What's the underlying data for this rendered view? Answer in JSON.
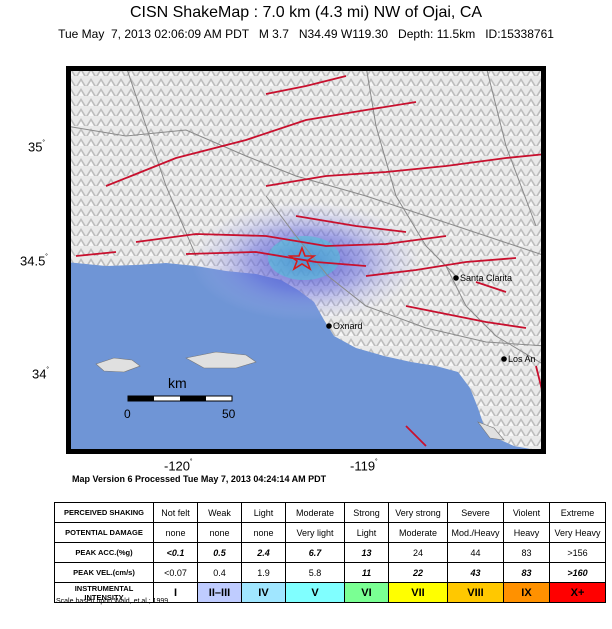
{
  "header": {
    "title": "CISN ShakeMap : 7.0 km (4.3 mi) NW of Ojai, CA",
    "subtitle": "Tue May  7, 2013 02:06:09 AM PDT   M 3.7   N34.49 W119.30   Depth: 11.5km   ID:15338761"
  },
  "map": {
    "lat_labels": [
      "35",
      "34.5",
      "34"
    ],
    "lon_labels": [
      "-120",
      "-119"
    ],
    "degree_symbol": "˚",
    "cities": [
      "Santa Clarita",
      "Oxnard",
      "Los An"
    ],
    "scale_bar": {
      "unit": "km",
      "start": "0",
      "end": "50"
    },
    "colors": {
      "ocean": "#6f95d6",
      "land": "#e8e8e8",
      "faults": "#c8102e",
      "roads": "#8a8a8a",
      "epicenter": "#d81b1b",
      "shaking": "#5a5fd8"
    }
  },
  "version_text": "Map Version 6 Processed Tue May  7, 2013 04:24:14 AM PDT",
  "legend": {
    "rows": [
      {
        "head": "PERCEIVED SHAKING",
        "cells": [
          "Not felt",
          "Weak",
          "Light",
          "Moderate",
          "Strong",
          "Very strong",
          "Severe",
          "Violent",
          "Extreme"
        ]
      },
      {
        "head": "POTENTIAL DAMAGE",
        "cells": [
          "none",
          "none",
          "none",
          "Very light",
          "Light",
          "Moderate",
          "Mod./Heavy",
          "Heavy",
          "Very Heavy"
        ]
      },
      {
        "head": "PEAK ACC.(%g)",
        "cells": [
          "<0.1",
          "0.5",
          "2.4",
          "6.7",
          "13",
          "24",
          "44",
          "83",
          ">156"
        ]
      },
      {
        "head": "PEAK VEL.(cm/s)",
        "cells": [
          "<0.07",
          "0.4",
          "1.9",
          "5.8",
          "11",
          "22",
          "43",
          "83",
          ">160"
        ]
      },
      {
        "head": "INSTRUMENTAL INTENSITY",
        "cells": [
          "I",
          "II–III",
          "IV",
          "V",
          "VI",
          "VII",
          "VIII",
          "IX",
          "X+"
        ]
      }
    ],
    "intensity_colors": [
      "#ffffff",
      "#bfccff",
      "#a0e6ff",
      "#80ffff",
      "#7aff93",
      "#ffff00",
      "#ffc800",
      "#ff9100",
      "#ff0000"
    ]
  },
  "footnote": "Scale based upon Wald, et al.; 1999"
}
